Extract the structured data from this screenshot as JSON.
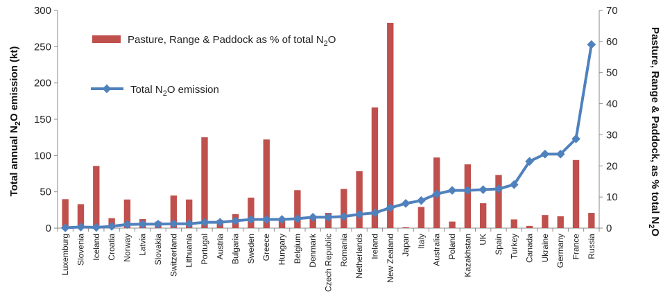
{
  "chart_data": {
    "type": "bar+line",
    "categories": [
      "Luxemburg",
      "Slovenia",
      "Iceland",
      "Croatia",
      "Norway",
      "Latvia",
      "Slovakia",
      "Switzerland",
      "Lithuania",
      "Portugal",
      "Austria",
      "Bulgaria",
      "Sweden",
      "Greece",
      "Hungary",
      "Belgium",
      "Denmark",
      "Czech Republic",
      "Romania",
      "Netherlands",
      "Ireland",
      "New Zealand",
      "Japan",
      "Italy",
      "Australia",
      "Poland",
      "Kazakhstan",
      "UK",
      "Spain",
      "Turkey",
      "Canada",
      "Ukraine",
      "Germany",
      "France",
      "Russia"
    ],
    "series": [
      {
        "name": "Pasture, Range & Paddock as % of total N₂O",
        "legend_parts": {
          "pre": "Pasture, Range & Paddock as % of total N",
          "sub": "2",
          "post": "O"
        },
        "type": "bar",
        "axis": "right",
        "color": "#c0504d",
        "values": [
          9.3,
          7.7,
          20.0,
          3.2,
          9.2,
          2.9,
          2.1,
          10.5,
          9.2,
          29.2,
          2.6,
          4.5,
          9.8,
          28.5,
          3.3,
          12.2,
          3.6,
          4.9,
          12.6,
          18.3,
          38.8,
          66.0,
          0.3,
          6.8,
          22.7,
          2.1,
          20.5,
          8.0,
          17.1,
          2.8,
          0.7,
          4.2,
          3.8,
          21.9,
          4.9
        ]
      },
      {
        "name": "Total N₂O emission",
        "legend_parts": {
          "pre": "Total N",
          "sub": "2",
          "post": "O emission"
        },
        "type": "line",
        "axis": "left",
        "color": "#4f81bd",
        "values": [
          0.5,
          1.5,
          1.0,
          2.5,
          5,
          5.5,
          5.5,
          6,
          6,
          8,
          8,
          10,
          12,
          12,
          12,
          13,
          15,
          15,
          16,
          19,
          21,
          28,
          34,
          38,
          47,
          52,
          52,
          53,
          54,
          60,
          92,
          102,
          102,
          123,
          253
        ]
      }
    ],
    "y_left": {
      "label_pre": "Total annual N",
      "label_sub": "2",
      "label_post": "O emission (kt)",
      "min": 0,
      "max": 300,
      "ticks": [
        "0",
        "50",
        "100",
        "150",
        "200",
        "250",
        "300"
      ]
    },
    "y_right": {
      "label_pre": "Pasture, Range & Paddock, as % total N",
      "label_sub": "2",
      "label_post": "O",
      "min": 0,
      "max": 70,
      "ticks": [
        "0",
        "10",
        "20",
        "30",
        "40",
        "50",
        "60",
        "70"
      ]
    },
    "legend_position": "top-left",
    "grid": false
  }
}
